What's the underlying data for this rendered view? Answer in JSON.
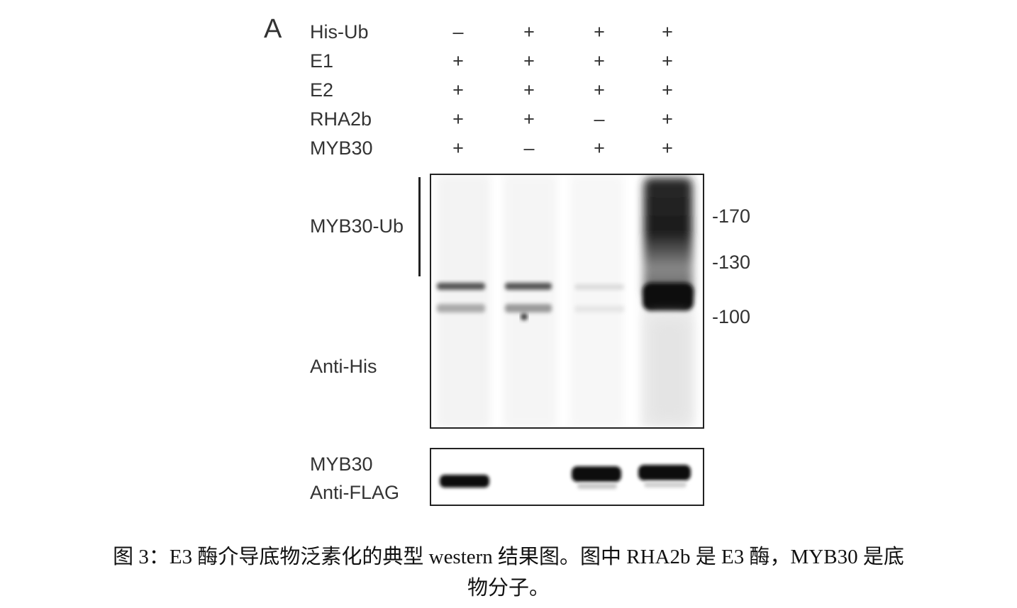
{
  "figure": {
    "panel": "A",
    "conditions": [
      {
        "label": "His-Ub",
        "lanes": [
          "–",
          "+",
          "+",
          "+"
        ]
      },
      {
        "label": "E1",
        "lanes": [
          "+",
          "+",
          "+",
          "+"
        ]
      },
      {
        "label": "E2",
        "lanes": [
          "+",
          "+",
          "+",
          "+"
        ]
      },
      {
        "label": "RHA2b",
        "lanes": [
          "+",
          "+",
          "–",
          "+"
        ]
      },
      {
        "label": "MYB30",
        "lanes": [
          "+",
          "–",
          "+",
          "+"
        ]
      }
    ],
    "main_blot": {
      "bracket_label": "MYB30-Ub",
      "antibody": "Anti-His",
      "markers": [
        "-170",
        "-130",
        "-100"
      ]
    },
    "lower_blot": {
      "protein": "MYB30",
      "antibody": "Anti-FLAG"
    }
  },
  "caption": {
    "line1": "图 3：E3  酶介导底物泛素化的典型 western  结果图。图中 RHA2b  是 E3  酶，MYB30  是底",
    "line2": "物分子。"
  }
}
